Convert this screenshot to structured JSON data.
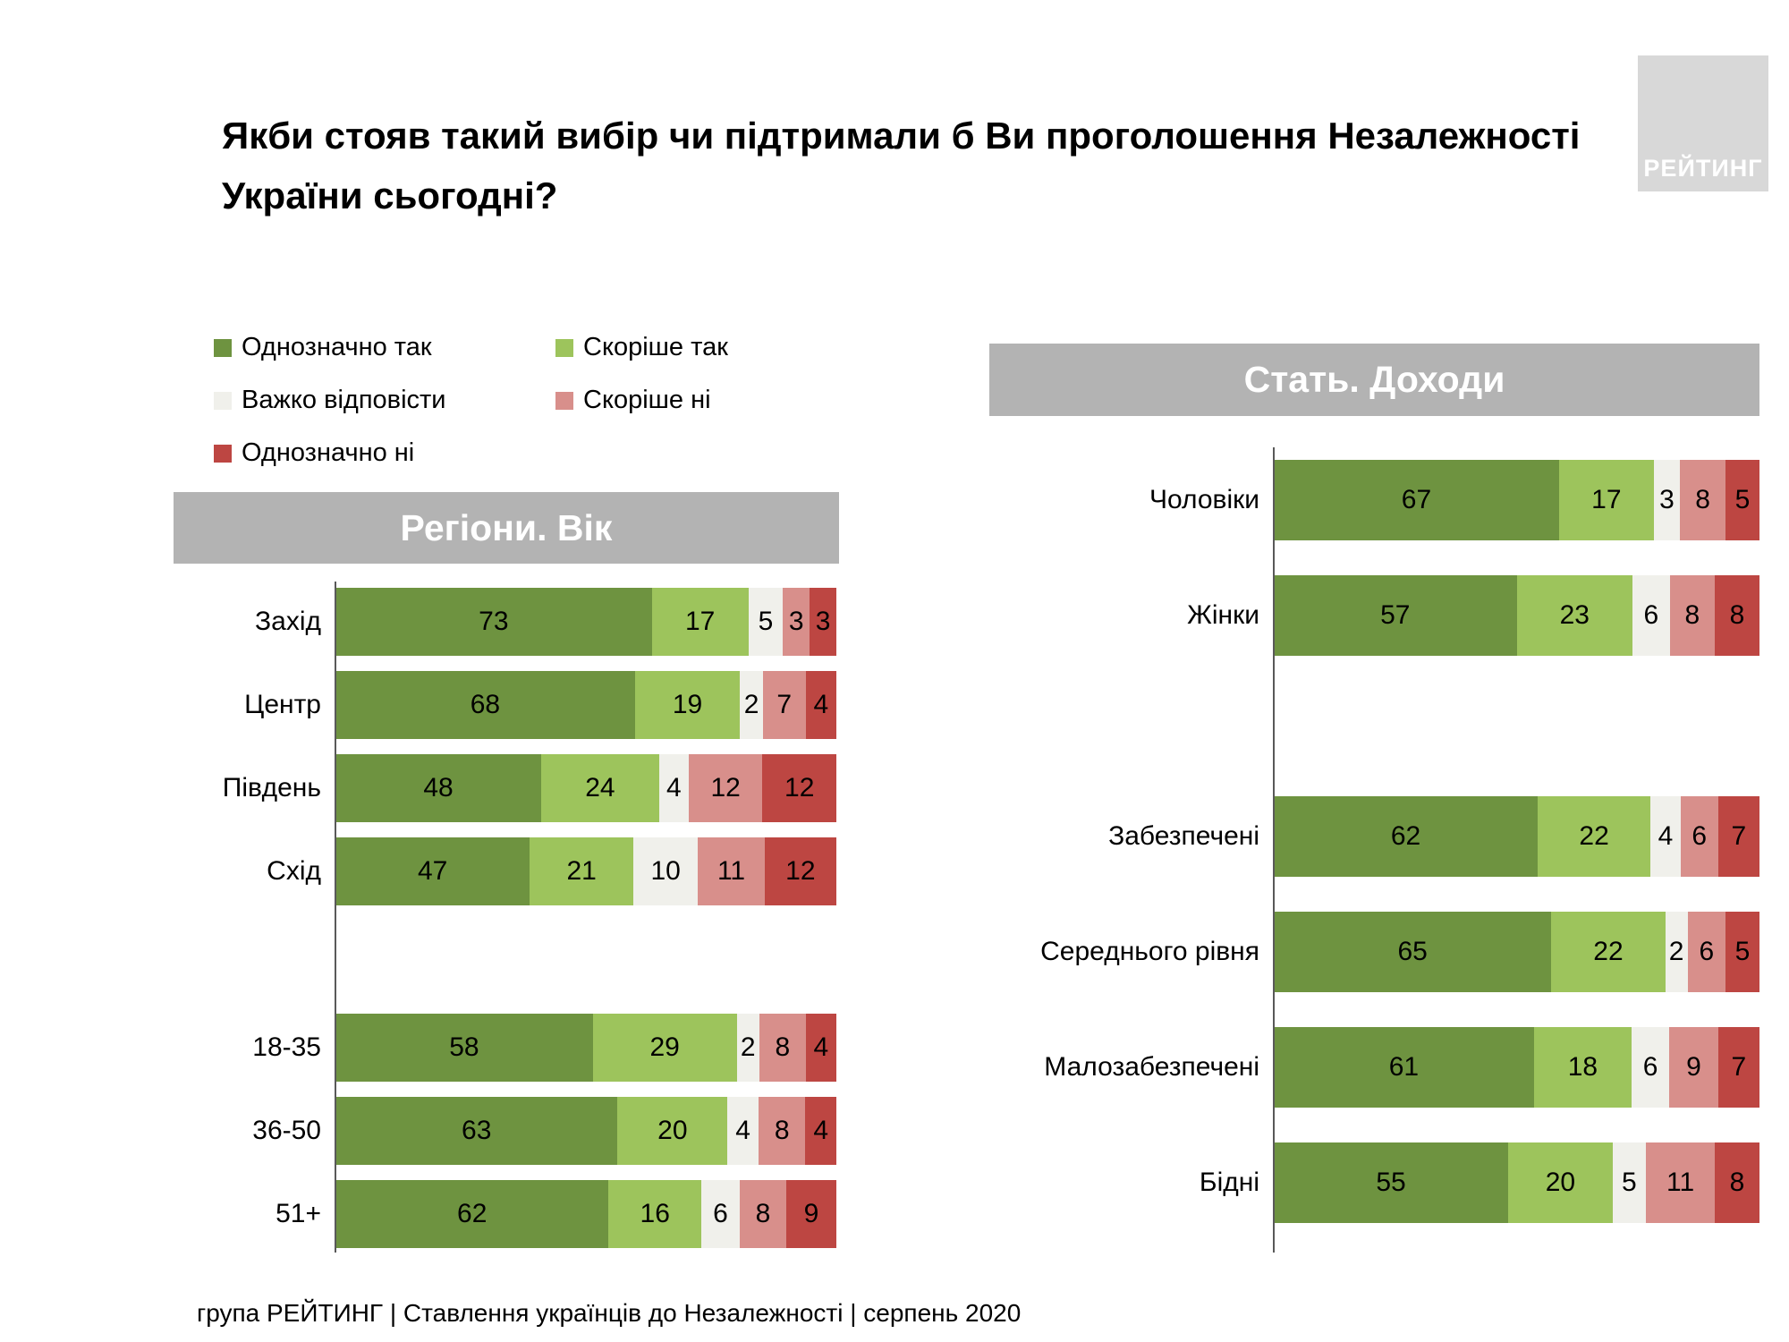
{
  "title": "Якби стояв такий вибір чи підтримали б Ви проголошення Незалежності\nУкраїни сьогодні?",
  "logo": {
    "text": "РЕЙТИНГ"
  },
  "footer": "група РЕЙТИНГ | Ставлення українців до Незалежності | серпень 2020",
  "legend": [
    {
      "label": "Однозначно так",
      "color": "#6e9340"
    },
    {
      "label": "Скоріше так",
      "color": "#9dc45c"
    },
    {
      "label": "Важко відповісти",
      "color": "#f0f0eb"
    },
    {
      "label": "Скоріше ні",
      "color": "#d88f8b"
    },
    {
      "label": "Однозначно ні",
      "color": "#bd4642"
    }
  ],
  "chart_data": [
    {
      "type": "bar",
      "stacked": true,
      "orientation": "horizontal",
      "title": "Регіони. Вік",
      "series_names": [
        "Однозначно так",
        "Скоріше так",
        "Важко відповісти",
        "Скоріше ні",
        "Однозначно ні"
      ],
      "xlim": [
        0,
        100
      ],
      "grid": false,
      "legend_position": "top-left",
      "value_unit": "%",
      "groups": [
        {
          "name": "regions",
          "rows": [
            {
              "category": "Захід",
              "values": [
                73,
                17,
                5,
                3,
                3
              ]
            },
            {
              "category": "Центр",
              "values": [
                68,
                19,
                2,
                7,
                4
              ]
            },
            {
              "category": "Південь",
              "values": [
                48,
                24,
                4,
                12,
                12
              ]
            },
            {
              "category": "Схід",
              "values": [
                47,
                21,
                10,
                11,
                12
              ]
            }
          ]
        },
        {
          "name": "age",
          "rows": [
            {
              "category": "18-35",
              "values": [
                58,
                29,
                2,
                8,
                4
              ]
            },
            {
              "category": "36-50",
              "values": [
                63,
                20,
                4,
                8,
                4
              ]
            },
            {
              "category": "51+",
              "values": [
                62,
                16,
                6,
                8,
                9
              ]
            }
          ]
        }
      ]
    },
    {
      "type": "bar",
      "stacked": true,
      "orientation": "horizontal",
      "title": "Стать. Доходи",
      "series_names": [
        "Однозначно так",
        "Скоріше так",
        "Важко відповісти",
        "Скоріше ні",
        "Однозначно ні"
      ],
      "xlim": [
        0,
        100
      ],
      "grid": false,
      "legend_position": "top-left",
      "value_unit": "%",
      "groups": [
        {
          "name": "gender",
          "rows": [
            {
              "category": "Чоловіки",
              "values": [
                67,
                17,
                3,
                8,
                5
              ]
            },
            {
              "category": "Жінки",
              "values": [
                57,
                23,
                6,
                8,
                8
              ]
            }
          ]
        },
        {
          "name": "income",
          "rows": [
            {
              "category": "Забезпечені",
              "values": [
                62,
                22,
                4,
                6,
                7
              ]
            },
            {
              "category": "Середнього рівня",
              "values": [
                65,
                22,
                2,
                6,
                5
              ]
            },
            {
              "category": "Малозабезпечені",
              "values": [
                61,
                18,
                6,
                9,
                7
              ]
            },
            {
              "category": "Бідні",
              "values": [
                55,
                20,
                5,
                11,
                8
              ]
            }
          ]
        }
      ]
    }
  ]
}
